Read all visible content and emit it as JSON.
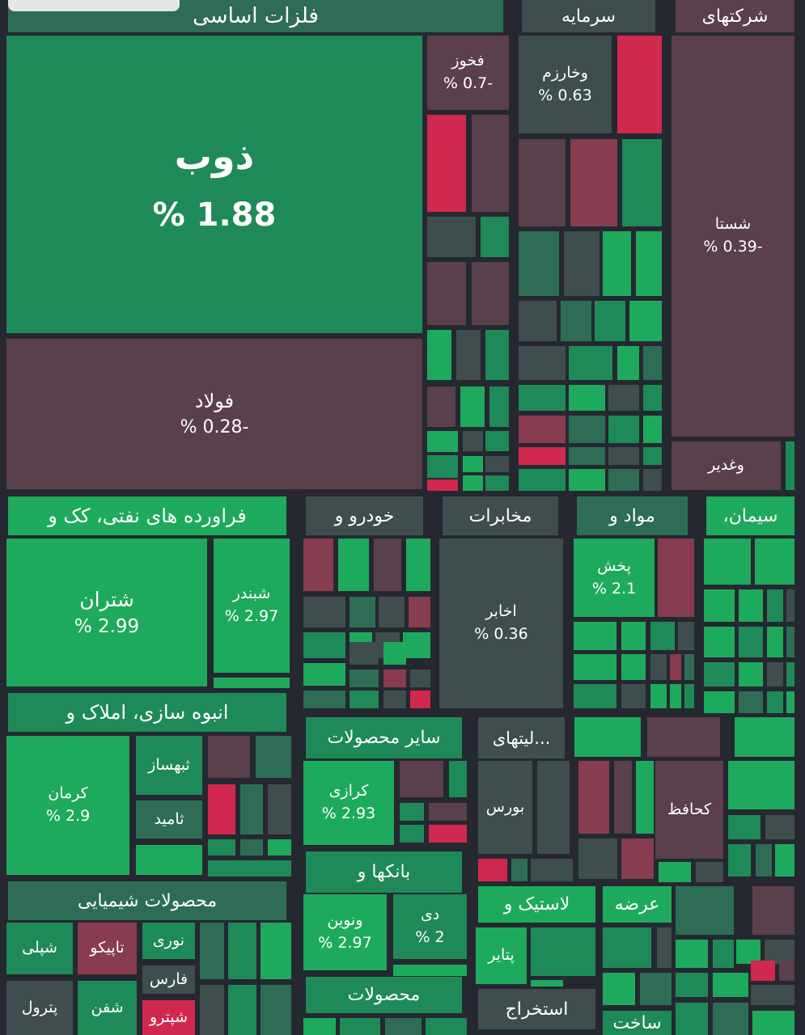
{
  "chart_data": {
    "type": "treemap",
    "colors": {
      "strong_up": "#1eaa5d",
      "up": "#1e8a58",
      "mild_up": "#2e6c56",
      "neutral": "#3f4d4e",
      "mild_down": "#5a3f4c",
      "down": "#873c50",
      "strong_down": "#d1284e"
    },
    "sectors": [
      {
        "name": "فلزات اساسی",
        "color": "mild_up"
      },
      {
        "name": "سرمایه",
        "color": "neutral"
      },
      {
        "name": "شرکتهای",
        "color": "mild_down"
      },
      {
        "name": "فراورده های نفتی، کک و",
        "color": "strong_up"
      },
      {
        "name": "خودرو و",
        "color": "neutral"
      },
      {
        "name": "مخابرات",
        "color": "neutral"
      },
      {
        "name": "مواد و",
        "color": "mild_up"
      },
      {
        "name": "سیمان،",
        "color": "strong_up"
      },
      {
        "name": "انبوه سازی، املاک و",
        "color": "up"
      },
      {
        "name": "سایر محصولات",
        "color": "up"
      },
      {
        "name": "...لیتهای",
        "color": "neutral"
      },
      {
        "name": "بانکها و",
        "color": "up"
      },
      {
        "name": "محصولات شیمیایی",
        "color": "mild_up"
      },
      {
        "name": "لاستیک و",
        "color": "strong_up"
      },
      {
        "name": "عرضه",
        "color": "strong_up"
      },
      {
        "name": "محصولات",
        "color": "up"
      },
      {
        "name": "استخراج",
        "color": "neutral"
      },
      {
        "name": "ساخت",
        "color": "up"
      }
    ],
    "tiles": [
      {
        "name": "ذوب",
        "change": "1.88 %",
        "color": "up"
      },
      {
        "name": "فولاد",
        "change": "-0.28 %",
        "color": "mild_down"
      },
      {
        "name": "فخوز",
        "change": "-0.7 %",
        "color": "mild_down"
      },
      {
        "name": "وخارزم",
        "change": "0.63 %",
        "color": "neutral"
      },
      {
        "name": "شستا",
        "change": "-0.39 %",
        "color": "mild_down"
      },
      {
        "name": "وغدیر",
        "change": "",
        "color": "mild_down"
      },
      {
        "name": "شتران",
        "change": "2.99 %",
        "color": "strong_up"
      },
      {
        "name": "شبندر",
        "change": "2.97 %",
        "color": "strong_up"
      },
      {
        "name": "اخابر",
        "change": "0.36 %",
        "color": "neutral"
      },
      {
        "name": "پخش",
        "change": "2.1 %",
        "color": "strong_up"
      },
      {
        "name": "کرمان",
        "change": "2.9 %",
        "color": "strong_up"
      },
      {
        "name": "ثبهساز",
        "change": "",
        "color": "up"
      },
      {
        "name": "ثامید",
        "change": "",
        "color": "mild_up"
      },
      {
        "name": "کرازی",
        "change": "2.93 %",
        "color": "strong_up"
      },
      {
        "name": "بورس",
        "change": "",
        "color": "neutral"
      },
      {
        "name": "کحافظ",
        "change": "",
        "color": "mild_down"
      },
      {
        "name": "ونوین",
        "change": "2.97 %",
        "color": "strong_up"
      },
      {
        "name": "دی",
        "change": "2 %",
        "color": "up"
      },
      {
        "name": "شپلی",
        "change": "",
        "color": "up"
      },
      {
        "name": "تاپیکو",
        "change": "",
        "color": "down"
      },
      {
        "name": "نوری",
        "change": "",
        "color": "up"
      },
      {
        "name": "فارس",
        "change": "",
        "color": "neutral"
      },
      {
        "name": "شپترو",
        "change": "",
        "color": "strong_down"
      },
      {
        "name": "شفن",
        "change": "",
        "color": "up"
      },
      {
        "name": "پترول",
        "change": "",
        "color": "neutral"
      },
      {
        "name": "پتایر",
        "change": "",
        "color": "strong_up"
      }
    ]
  }
}
